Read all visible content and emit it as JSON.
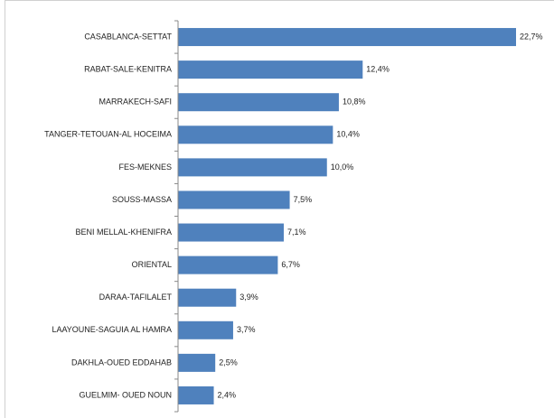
{
  "chart_data": {
    "type": "bar",
    "orientation": "horizontal",
    "categories": [
      "CASABLANCA-SETTAT",
      "RABAT-SALE-KENITRA",
      "MARRAKECH-SAFI",
      "TANGER-TETOUAN-AL HOCEIMA",
      "FES-MEKNES",
      "SOUSS-MASSA",
      "BENI MELLAL-KHENIFRA",
      "ORIENTAL",
      "DARAA-TAFILALET",
      "LAAYOUNE-SAGUIA AL HAMRA",
      "DAKHLA-OUED EDDAHAB",
      "GUELMIM- OUED NOUN"
    ],
    "values": [
      22.7,
      12.4,
      10.8,
      10.4,
      10.0,
      7.5,
      7.1,
      6.7,
      3.9,
      3.7,
      2.5,
      2.4
    ],
    "value_labels": [
      "22,7%",
      "12,4%",
      "10,8%",
      "10,4%",
      "10,0%",
      "7,5%",
      "7,1%",
      "6,7%",
      "3,9%",
      "3,7%",
      "2,5%",
      "2,4%"
    ],
    "color": "#4f81bd"
  }
}
